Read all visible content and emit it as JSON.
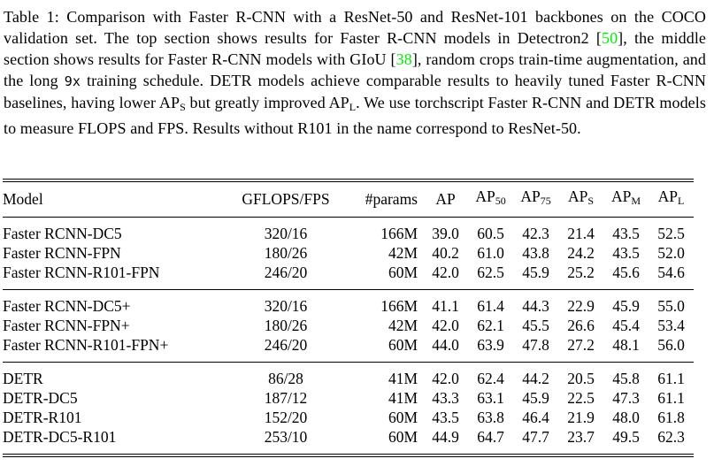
{
  "caption": {
    "cite_color": "#00ee00",
    "segments": [
      {
        "type": "text",
        "text": "Table 1: Comparison with Faster R-CNN with a ResNet-50 and ResNet-101 backbones on the COCO validation set. The top section shows results for Faster R-CNN models in Detectron2 ["
      },
      {
        "type": "cite",
        "text": "50"
      },
      {
        "type": "text",
        "text": "], the middle section shows results for Faster R-CNN models with GIoU ["
      },
      {
        "type": "cite",
        "text": "38"
      },
      {
        "type": "text",
        "text": "], random crops train-time augmentation, and the long "
      },
      {
        "type": "mono",
        "text": "9x"
      },
      {
        "type": "text",
        "text": " training schedule. DETR models achieve comparable results to heavily tuned Faster R-CNN baselines, having lower AP"
      },
      {
        "type": "sub",
        "text": "S"
      },
      {
        "type": "text",
        "text": " but greatly improved AP"
      },
      {
        "type": "sub",
        "text": "L"
      },
      {
        "type": "text",
        "text": ". We use torchscript Faster R-CNN and DETR models to measure FLOPS and FPS. Results without R101 in the name correspond to ResNet-50."
      }
    ]
  },
  "table": {
    "header": [
      {
        "text": "Model",
        "sub": ""
      },
      {
        "text": "GFLOPS/FPS",
        "sub": ""
      },
      {
        "text": "#params",
        "sub": ""
      },
      {
        "text": "AP",
        "sub": ""
      },
      {
        "text": "AP",
        "sub": "50"
      },
      {
        "text": "AP",
        "sub": "75"
      },
      {
        "text": "AP",
        "sub": "S"
      },
      {
        "text": "AP",
        "sub": "M"
      },
      {
        "text": "AP",
        "sub": "L"
      }
    ],
    "sections": [
      {
        "rows": [
          {
            "model": "Faster RCNN-DC5",
            "gflops_fps": "320/16",
            "params": "166M",
            "values": [
              "39.0",
              "60.5",
              "42.3",
              "21.4",
              "43.5",
              "52.5"
            ],
            "bold": []
          },
          {
            "model": "Faster RCNN-FPN",
            "gflops_fps": "180/26",
            "params": "42M",
            "values": [
              "40.2",
              "61.0",
              "43.8",
              "24.2",
              "43.5",
              "52.0"
            ],
            "bold": []
          },
          {
            "model": "Faster RCNN-R101-FPN",
            "gflops_fps": "246/20",
            "params": "60M",
            "values": [
              "42.0",
              "62.5",
              "45.9",
              "25.2",
              "45.6",
              "54.6"
            ],
            "bold": []
          }
        ]
      },
      {
        "rows": [
          {
            "model": "Faster RCNN-DC5+",
            "gflops_fps": "320/16",
            "params": "166M",
            "values": [
              "41.1",
              "61.4",
              "44.3",
              "22.9",
              "45.9",
              "55.0"
            ],
            "bold": []
          },
          {
            "model": "Faster RCNN-FPN+",
            "gflops_fps": "180/26",
            "params": "42M",
            "values": [
              "42.0",
              "62.1",
              "45.5",
              "26.6",
              "45.4",
              "53.4"
            ],
            "bold": []
          },
          {
            "model": "Faster RCNN-R101-FPN+",
            "gflops_fps": "246/20",
            "params": "60M",
            "values": [
              "44.0",
              "63.9",
              "47.8",
              "27.2",
              "48.1",
              "56.0"
            ],
            "bold": [
              2,
              3
            ]
          }
        ]
      },
      {
        "rows": [
          {
            "model": "DETR",
            "gflops_fps": "86/28",
            "params": "41M",
            "values": [
              "42.0",
              "62.4",
              "44.2",
              "20.5",
              "45.8",
              "61.1"
            ],
            "bold": []
          },
          {
            "model": "DETR-DC5",
            "gflops_fps": "187/12",
            "params": "41M",
            "values": [
              "43.3",
              "63.1",
              "45.9",
              "22.5",
              "47.3",
              "61.1"
            ],
            "bold": []
          },
          {
            "model": "DETR-R101",
            "gflops_fps": "152/20",
            "params": "60M",
            "values": [
              "43.5",
              "63.8",
              "46.4",
              "21.9",
              "48.0",
              "61.8"
            ],
            "bold": []
          },
          {
            "model": "DETR-DC5-R101",
            "gflops_fps": "253/10",
            "params": "60M",
            "values": [
              "44.9",
              "64.7",
              "47.7",
              "23.7",
              "49.5",
              "62.3"
            ],
            "bold": [
              0,
              1,
              4,
              5
            ]
          }
        ]
      }
    ]
  }
}
